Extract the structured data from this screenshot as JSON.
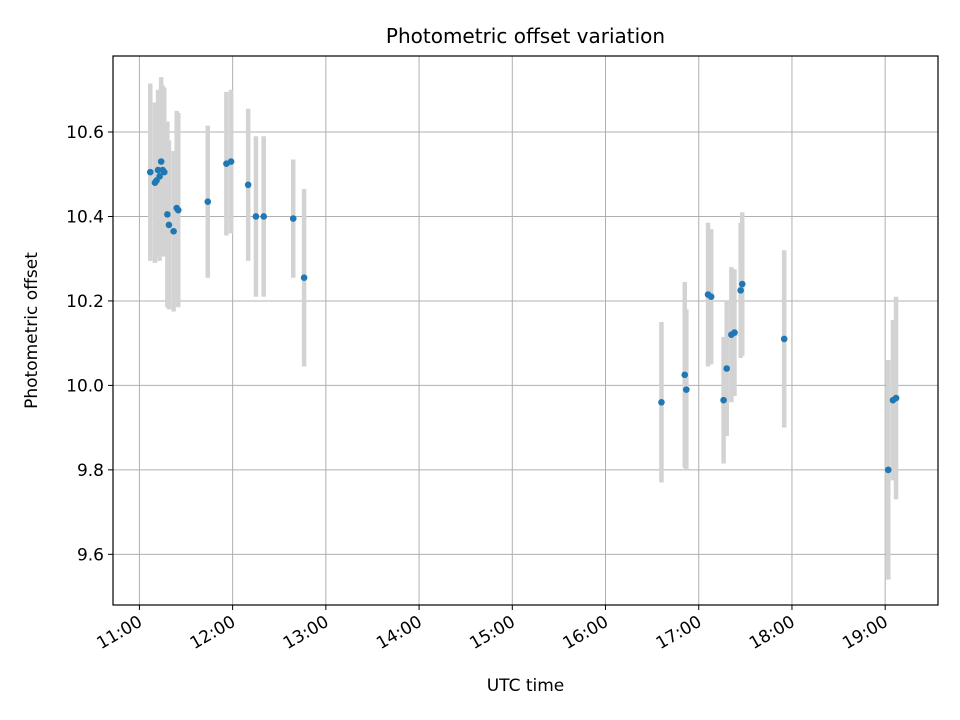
{
  "chart_data": {
    "type": "scatter",
    "title": "Photometric offset variation",
    "xlabel": "UTC time",
    "ylabel": "Photometric offset",
    "grid": true,
    "xlim": [
      "10:43",
      "19:34"
    ],
    "ylim": [
      9.48,
      10.78
    ],
    "x_ticks": [
      "11:00",
      "12:00",
      "13:00",
      "14:00",
      "15:00",
      "16:00",
      "17:00",
      "18:00",
      "19:00"
    ],
    "y_ticks": [
      9.6,
      9.8,
      10.0,
      10.2,
      10.4,
      10.6
    ],
    "colors": {
      "points": "#1f77b4",
      "errorbars": "#d3d3d3",
      "grid": "#b0b0b0"
    },
    "points": [
      {
        "x": "11:07",
        "y": 10.505,
        "err": 0.21
      },
      {
        "x": "11:10",
        "y": 10.48,
        "err": 0.19
      },
      {
        "x": "11:11",
        "y": 10.485,
        "err": 0.18
      },
      {
        "x": "11:12",
        "y": 10.51,
        "err": 0.19
      },
      {
        "x": "11:13",
        "y": 10.495,
        "err": 0.2
      },
      {
        "x": "11:14",
        "y": 10.53,
        "err": 0.2
      },
      {
        "x": "11:15",
        "y": 10.51,
        "err": 0.2
      },
      {
        "x": "11:16",
        "y": 10.505,
        "err": 0.2
      },
      {
        "x": "11:18",
        "y": 10.405,
        "err": 0.22
      },
      {
        "x": "11:19",
        "y": 10.38,
        "err": 0.2
      },
      {
        "x": "11:22",
        "y": 10.365,
        "err": 0.19
      },
      {
        "x": "11:24",
        "y": 10.42,
        "err": 0.23
      },
      {
        "x": "11:25",
        "y": 10.415,
        "err": 0.23
      },
      {
        "x": "11:44",
        "y": 10.435,
        "err": 0.18
      },
      {
        "x": "11:56",
        "y": 10.525,
        "err": 0.17
      },
      {
        "x": "11:59",
        "y": 10.53,
        "err": 0.17
      },
      {
        "x": "12:10",
        "y": 10.475,
        "err": 0.18
      },
      {
        "x": "12:15",
        "y": 10.4,
        "err": 0.19
      },
      {
        "x": "12:20",
        "y": 10.4,
        "err": 0.19
      },
      {
        "x": "12:39",
        "y": 10.395,
        "err": 0.14
      },
      {
        "x": "12:46",
        "y": 10.255,
        "err": 0.21
      },
      {
        "x": "16:36",
        "y": 9.96,
        "err": 0.19
      },
      {
        "x": "16:51",
        "y": 10.025,
        "err": 0.22
      },
      {
        "x": "16:52",
        "y": 9.99,
        "err": 0.19
      },
      {
        "x": "17:06",
        "y": 10.215,
        "err": 0.17
      },
      {
        "x": "17:08",
        "y": 10.21,
        "err": 0.16
      },
      {
        "x": "17:16",
        "y": 9.965,
        "err": 0.15
      },
      {
        "x": "17:18",
        "y": 10.04,
        "err": 0.16
      },
      {
        "x": "17:21",
        "y": 10.12,
        "err": 0.16
      },
      {
        "x": "17:23",
        "y": 10.125,
        "err": 0.15
      },
      {
        "x": "17:27",
        "y": 10.225,
        "err": 0.16
      },
      {
        "x": "17:28",
        "y": 10.24,
        "err": 0.17
      },
      {
        "x": "17:55",
        "y": 10.11,
        "err": 0.21
      },
      {
        "x": "19:02",
        "y": 9.8,
        "err": 0.26
      },
      {
        "x": "19:05",
        "y": 9.965,
        "err": 0.19
      },
      {
        "x": "19:07",
        "y": 9.97,
        "err": 0.24
      }
    ]
  }
}
